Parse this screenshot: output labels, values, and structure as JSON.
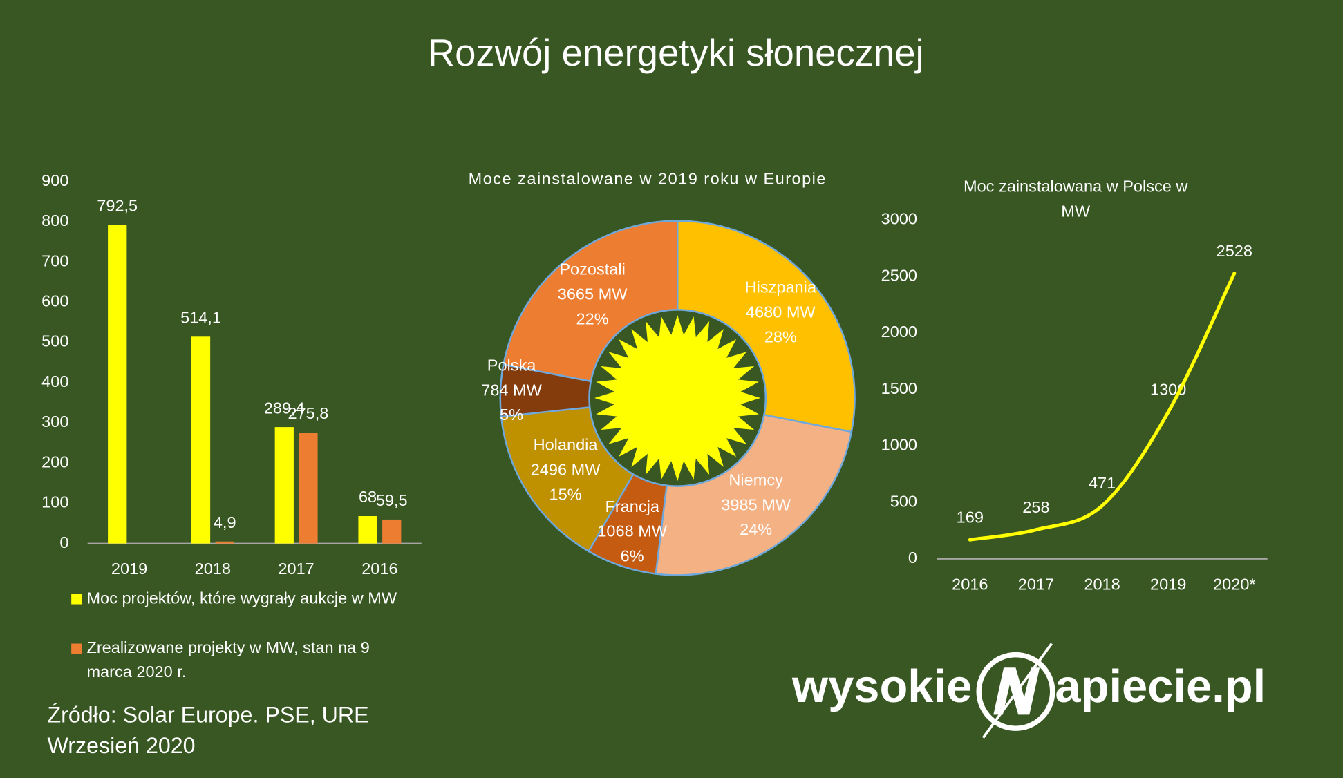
{
  "title": "Rozwój energetyki słonecznej",
  "chart_data": [
    {
      "type": "bar",
      "categories": [
        "2019",
        "2018",
        "2017",
        "2016"
      ],
      "series": [
        {
          "name": "Moc projektów, które wygrały aukcje w MW",
          "color": "#ffff00",
          "values": [
            792.5,
            514.1,
            289.4,
            68
          ],
          "value_labels": [
            "792,5",
            "514,1",
            "289,4",
            "68"
          ]
        },
        {
          "name": "Zrealizowane projekty w MW, stan na 9 marca 2020 r.",
          "color": "#ed7d31",
          "values": [
            null,
            4.9,
            275.8,
            59.5
          ],
          "value_labels": [
            null,
            "4,9",
            "275,8",
            "59,5"
          ]
        }
      ],
      "ylim": [
        0,
        900
      ],
      "yticks": [
        0,
        100,
        200,
        300,
        400,
        500,
        600,
        700,
        800,
        900
      ],
      "grid": false,
      "legend": "bottom"
    },
    {
      "type": "pie",
      "donut": true,
      "title": "Moce zainstalowane w 2019 roku w Europie",
      "categories": [
        "Hiszpania",
        "Niemcy",
        "Francja",
        "Holandia",
        "Polska",
        "Pozostali"
      ],
      "values": [
        4680,
        3985,
        1068,
        2496,
        784,
        3665
      ],
      "value_labels": [
        "4680 MW",
        "3985 MW",
        "1068 MW",
        "2496 MW",
        "784 MW",
        "3665 MW"
      ],
      "percentage_labels": [
        "28%",
        "24%",
        "6%",
        "15%",
        "5%",
        "22%"
      ],
      "colors": [
        "#ffc000",
        "#f4b183",
        "#c55a11",
        "#bf9000",
        "#843c0c",
        "#ed7d31"
      ]
    },
    {
      "type": "line",
      "title": "Moc zainstalowana w Polsce w MW",
      "categories": [
        "2016",
        "2017",
        "2018",
        "2019",
        "2020*"
      ],
      "values": [
        169,
        258,
        471,
        1300,
        2528
      ],
      "color": "#ffff00",
      "ylim": [
        0,
        3000
      ],
      "yticks": [
        0,
        500,
        1000,
        1500,
        2000,
        2500,
        3000
      ],
      "grid": false
    }
  ],
  "source": "Źródło: Solar Europe. PSE, URE",
  "date": "Wrzesień 2020",
  "logo": {
    "left": "wysokie",
    "right": "apiecie.pl"
  }
}
